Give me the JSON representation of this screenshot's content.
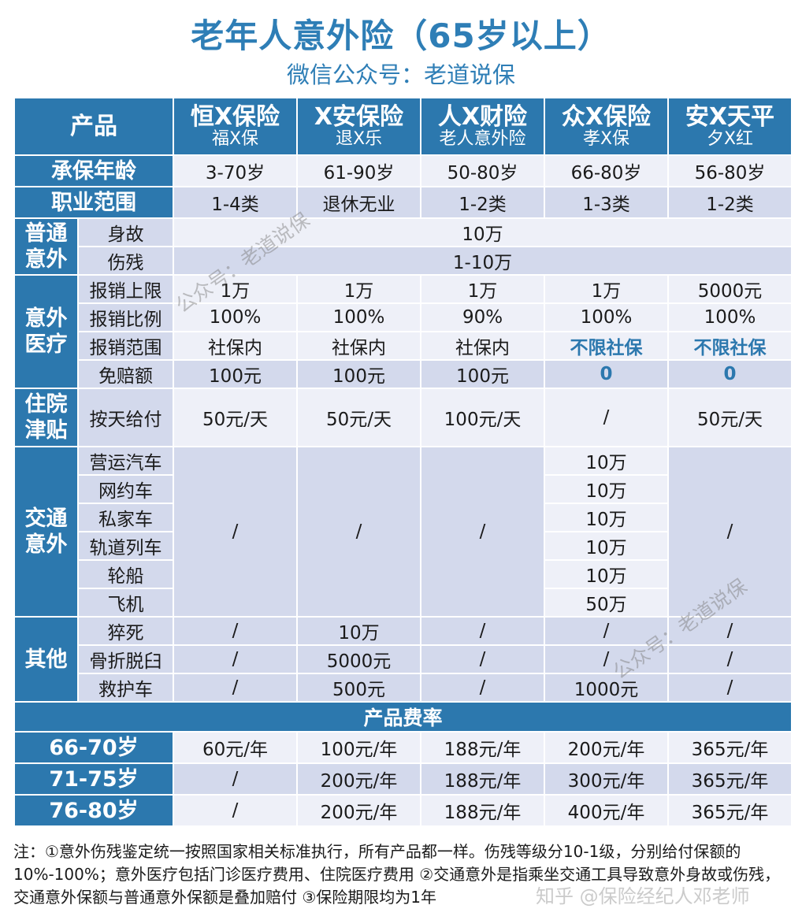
{
  "title": "老年人意外险（65岁以上）",
  "subtitle": "微信公众号：老道说保",
  "header": {
    "label": "产品",
    "products": [
      {
        "company": "恒X保险",
        "name": "福X保"
      },
      {
        "company": "X安保险",
        "name": "退X乐"
      },
      {
        "company": "人X财险",
        "name": "老人意外险"
      },
      {
        "company": "众X保险",
        "name": "孝X保"
      },
      {
        "company": "安X天平",
        "name": "夕X红"
      }
    ]
  },
  "rows": {
    "age": {
      "label": "承保年龄",
      "values": [
        "3-70岁",
        "61-90岁",
        "50-80岁",
        "66-80岁",
        "56-80岁"
      ]
    },
    "occupation": {
      "label": "职业范围",
      "values": [
        "1-4类",
        "退休无业",
        "1-2类",
        "1-3类",
        "1-2类"
      ]
    },
    "general": {
      "group": "普通意外",
      "death": {
        "label": "身故",
        "value": "10万"
      },
      "disability": {
        "label": "伤残",
        "value": "1-10万"
      }
    },
    "medical": {
      "group": "意外医疗",
      "limit": {
        "label": "报销上限",
        "values": [
          "1万",
          "1万",
          "1万",
          "1万",
          "5000元"
        ]
      },
      "ratio": {
        "label": "报销比例",
        "values": [
          "100%",
          "100%",
          "90%",
          "100%",
          "100%"
        ]
      },
      "scope": {
        "label": "报销范围",
        "values": [
          "社保内",
          "社保内",
          "社保内",
          "不限社保",
          "不限社保"
        ]
      },
      "deductible": {
        "label": "免赔额",
        "values": [
          "100元",
          "100元",
          "100元",
          "0",
          "0"
        ]
      }
    },
    "hospital": {
      "group": "住院津贴",
      "label": "按天给付",
      "values": [
        "50元/天",
        "50元/天",
        "100元/天",
        "/",
        "50元/天"
      ]
    },
    "traffic": {
      "group": "交通意外",
      "items": [
        {
          "label": "营运汽车",
          "value": "10万"
        },
        {
          "label": "网约车",
          "value": "10万"
        },
        {
          "label": "私家车",
          "value": "10万"
        },
        {
          "label": "轨道列车",
          "value": "10万"
        },
        {
          "label": "轮船",
          "value": "10万"
        },
        {
          "label": "飞机",
          "value": "50万"
        }
      ],
      "other": "/"
    },
    "others": {
      "group": "其他",
      "items": [
        {
          "label": "猝死",
          "values": [
            "/",
            "10万",
            "/",
            "/",
            "/"
          ]
        },
        {
          "label": "骨折脱臼",
          "values": [
            "/",
            "5000元",
            "/",
            "/",
            "/"
          ]
        },
        {
          "label": "救护车",
          "values": [
            "/",
            "500元",
            "/",
            "1000元",
            "/"
          ]
        }
      ]
    }
  },
  "rates": {
    "title": "产品费率",
    "rows": [
      {
        "label": "66-70岁",
        "values": [
          "60元/年",
          "100元/年",
          "188元/年",
          "200元/年",
          "365元/年"
        ]
      },
      {
        "label": "71-75岁",
        "values": [
          "/",
          "200元/年",
          "188元/年",
          "300元/年",
          "365元/年"
        ]
      },
      {
        "label": "76-80岁",
        "values": [
          "/",
          "200元/年",
          "188元/年",
          "400元/年",
          "365元/年"
        ]
      }
    ]
  },
  "note": "注：①意外伤残鉴定统一按照国家相关标准执行，所有产品都一样。伤残等级分10-1级，分别给付保额的10%-100%；意外医疗包括门诊医疗费用、住院医疗费用 ②交通意外是指乘坐交通工具导致意外身故或伤残，交通意外保额与普通意外保额是叠加赔付 ③保险期限均为1年",
  "watermarks": {
    "wm1": "公众号：老道说保",
    "wm2": "公众号：老道说保",
    "wm3": "知乎 @保险经纪人邓老师"
  }
}
